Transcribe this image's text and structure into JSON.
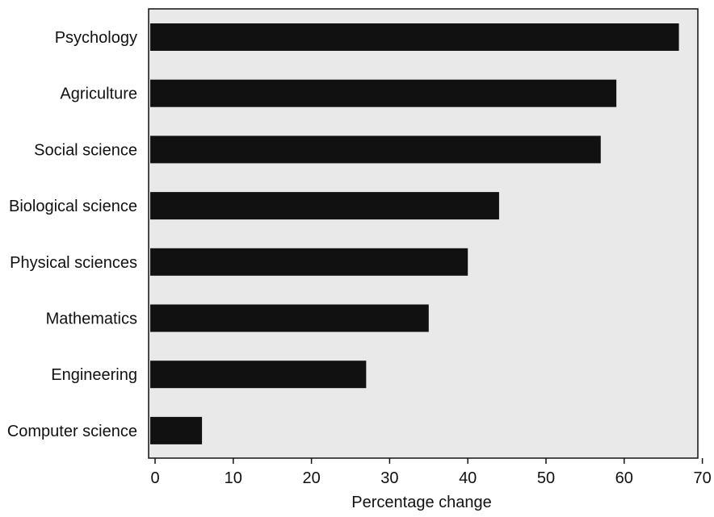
{
  "chart_data": {
    "type": "bar",
    "orientation": "horizontal",
    "title": "",
    "xlabel": "Percentage change",
    "ylabel": "",
    "categories": [
      "Psychology",
      "Agriculture",
      "Social science",
      "Biological science",
      "Physical sciences",
      "Mathematics",
      "Engineering",
      "Computer science"
    ],
    "values": [
      67,
      59,
      57,
      44,
      40,
      35,
      27,
      6
    ],
    "xlim": [
      0,
      70
    ],
    "xticks": [
      0,
      10,
      20,
      30,
      40,
      50,
      60,
      70
    ],
    "grid": false,
    "legend": "none",
    "colors": {
      "bar": "#111111",
      "plot_background": "#e9e9e9",
      "frame": "#111111",
      "text": "#111111"
    }
  }
}
